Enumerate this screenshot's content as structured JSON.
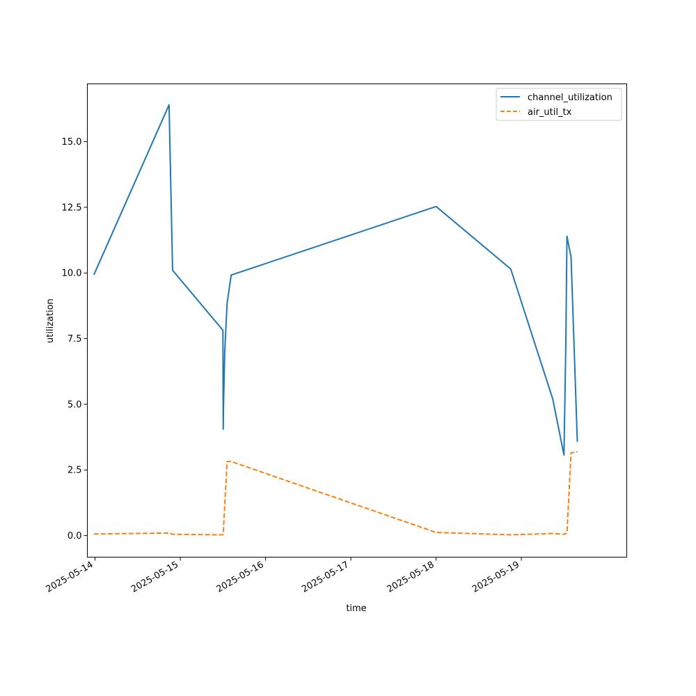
{
  "chart_data": {
    "type": "line",
    "xlabel": "time",
    "ylabel": "utilization",
    "x_ticks": [
      "2025-05-14",
      "2025-05-15",
      "2025-05-16",
      "2025-05-17",
      "2025-05-18",
      "2025-05-19"
    ],
    "y_ticks": [
      "0.0",
      "2.5",
      "5.0",
      "7.5",
      "10.0",
      "12.5",
      "15.0"
    ],
    "xlim": [
      "2025-05-13T21:50",
      "2025-05-20T05:40"
    ],
    "ylim": [
      -0.82,
      17.2
    ],
    "grid": false,
    "legend_position": "top-right",
    "series": [
      {
        "name": "channel_utilization",
        "color": "#1f77b4",
        "style": "solid",
        "points": [
          [
            "2025-05-13T23:40",
            9.93
          ],
          [
            "2025-05-14T20:50",
            16.4
          ],
          [
            "2025-05-14T21:50",
            10.1
          ],
          [
            "2025-05-15T12:00",
            7.82
          ],
          [
            "2025-05-15T12:05",
            4.05
          ],
          [
            "2025-05-15T12:10",
            5.0
          ],
          [
            "2025-05-15T12:30",
            7.0
          ],
          [
            "2025-05-15T13:10",
            8.85
          ],
          [
            "2025-05-15T14:20",
            9.92
          ],
          [
            "2025-05-18T00:00",
            12.53
          ],
          [
            "2025-05-18T21:00",
            10.15
          ],
          [
            "2025-05-19T08:50",
            5.2
          ],
          [
            "2025-05-19T12:00",
            3.07
          ],
          [
            "2025-05-19T12:30",
            7.2
          ],
          [
            "2025-05-19T12:50",
            11.4
          ],
          [
            "2025-05-19T14:00",
            10.6
          ],
          [
            "2025-05-19T15:45",
            3.57
          ]
        ]
      },
      {
        "name": "air_util_tx",
        "color": "#ff7f0e",
        "style": "dashed",
        "points": [
          [
            "2025-05-13T23:40",
            0.06
          ],
          [
            "2025-05-14T20:50",
            0.1
          ],
          [
            "2025-05-14T21:50",
            0.05
          ],
          [
            "2025-05-15T12:00",
            0.03
          ],
          [
            "2025-05-15T12:05",
            0.05
          ],
          [
            "2025-05-15T13:10",
            2.82
          ],
          [
            "2025-05-15T14:20",
            2.82
          ],
          [
            "2025-05-18T00:00",
            0.12
          ],
          [
            "2025-05-18T21:00",
            0.03
          ],
          [
            "2025-05-19T08:50",
            0.08
          ],
          [
            "2025-05-19T12:00",
            0.05
          ],
          [
            "2025-05-19T12:50",
            0.1
          ],
          [
            "2025-05-19T14:00",
            3.15
          ],
          [
            "2025-05-19T15:45",
            3.2
          ]
        ]
      }
    ]
  }
}
